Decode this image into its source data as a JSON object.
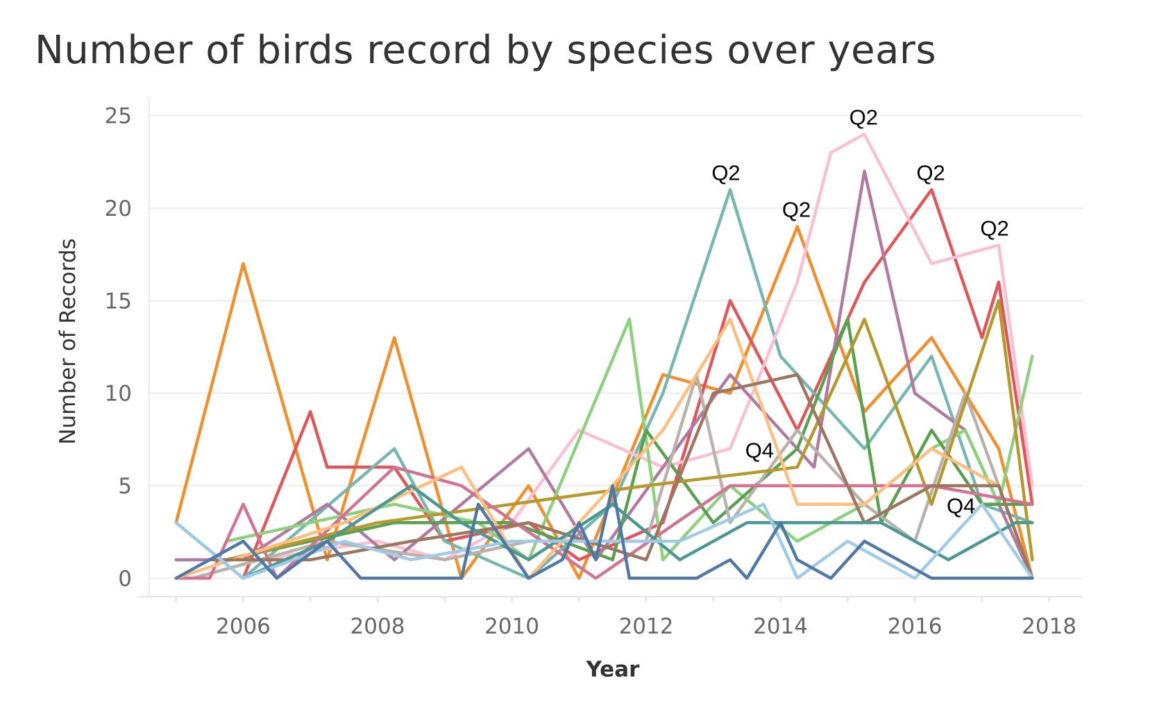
{
  "chart_data": {
    "type": "line",
    "title": "Number of birds record by species over years",
    "xlabel": "Year",
    "ylabel": "Number of Records",
    "xlim": [
      2004.6,
      2018.5
    ],
    "ylim": [
      -1,
      26
    ],
    "x_ticks": [
      2006,
      2008,
      2010,
      2012,
      2014,
      2016,
      2018
    ],
    "y_ticks": [
      0,
      5,
      10,
      15,
      20,
      25
    ],
    "grid": true,
    "legend": "none",
    "annotations": [
      {
        "text": "Q2",
        "x": 2013.25,
        "y": 21
      },
      {
        "text": "Q2",
        "x": 2014.3,
        "y": 19
      },
      {
        "text": "Q2",
        "x": 2015.3,
        "y": 24
      },
      {
        "text": "Q2",
        "x": 2016.3,
        "y": 21
      },
      {
        "text": "Q2",
        "x": 2017.25,
        "y": 18
      },
      {
        "text": "Q4",
        "x": 2013.75,
        "y": 6
      },
      {
        "text": "Q4",
        "x": 2016.75,
        "y": 3
      }
    ],
    "series": [
      {
        "color": "#f28e2b",
        "x": [
          2005.0,
          2006.0,
          2007.25,
          2008.25,
          2009.25,
          2010.25,
          2011.0,
          2012.25,
          2013.25,
          2014.25,
          2015.25,
          2016.25,
          2017.25,
          2017.75
        ],
        "values": [
          3,
          17,
          1,
          13,
          0,
          5,
          0,
          11,
          10,
          19,
          9,
          13,
          7,
          0
        ]
      },
      {
        "color": "#e15759",
        "x": [
          2006.0,
          2007.0,
          2007.25,
          2008.25,
          2009.0,
          2010.25,
          2011.0,
          2012.25,
          2013.25,
          2014.25,
          2015.25,
          2016.25,
          2017.0,
          2017.25,
          2017.75
        ],
        "values": [
          0,
          9,
          6,
          6,
          2,
          3,
          1,
          3,
          15,
          8,
          16,
          21,
          13,
          16,
          4
        ]
      },
      {
        "color": "#76b7b2",
        "x": [
          2005.0,
          2006.0,
          2008.25,
          2009.0,
          2010.25,
          2011.5,
          2012.25,
          2013.25,
          2014.0,
          2015.25,
          2016.25,
          2017.0,
          2017.75
        ],
        "values": [
          3,
          0,
          7,
          2,
          0,
          4,
          10,
          21,
          12,
          7,
          12,
          4,
          3
        ]
      },
      {
        "color": "#fabfd2",
        "x": [
          2005.25,
          2006.25,
          2008.0,
          2009.0,
          2010.0,
          2011.0,
          2012.25,
          2013.25,
          2014.25,
          2014.75,
          2015.25,
          2016.25,
          2017.25,
          2017.75
        ],
        "values": [
          0,
          1,
          2,
          1,
          3,
          8,
          6,
          7,
          16,
          23,
          24,
          17,
          18,
          5
        ]
      },
      {
        "color": "#b07aa1",
        "x": [
          2005.0,
          2006.0,
          2007.25,
          2008.25,
          2010.25,
          2011.25,
          2013.25,
          2014.5,
          2015.25,
          2016.0,
          2016.75,
          2017.75
        ],
        "values": [
          1,
          1,
          4,
          1,
          7,
          1,
          11,
          6,
          22,
          10,
          8,
          0
        ]
      },
      {
        "color": "#8cd17d",
        "x": [
          2005.75,
          2008.25,
          2009.5,
          2010.25,
          2011.75,
          2012.25,
          2013.25,
          2014.25,
          2015.25,
          2016.25,
          2016.75,
          2017.25,
          2017.75
        ],
        "values": [
          2,
          4,
          3,
          1,
          14,
          1,
          5,
          2,
          4,
          7,
          8,
          4,
          12
        ]
      },
      {
        "color": "#59a14f",
        "x": [
          2005.75,
          2008.25,
          2010.0,
          2011.5,
          2012.0,
          2013.0,
          2014.25,
          2015.0,
          2015.5,
          2016.25,
          2017.0,
          2017.75
        ],
        "values": [
          1,
          3,
          3,
          1,
          8,
          3,
          7,
          14,
          3,
          8,
          4,
          4
        ]
      },
      {
        "color": "#bab0ac",
        "x": [
          2005.25,
          2007.25,
          2009.0,
          2010.25,
          2012.0,
          2012.75,
          2013.25,
          2014.25,
          2015.25,
          2016.0,
          2016.75,
          2017.75
        ],
        "values": [
          0,
          2,
          1,
          2,
          2,
          11,
          3,
          8,
          4,
          2,
          10,
          0
        ]
      },
      {
        "color": "#b6992d",
        "x": [
          2005.75,
          2008.0,
          2010.0,
          2012.0,
          2014.25,
          2015.25,
          2016.25,
          2017.25,
          2017.75
        ],
        "values": [
          1,
          3,
          4,
          5,
          6,
          14,
          4,
          15,
          1
        ]
      },
      {
        "color": "#d37295",
        "x": [
          2005.0,
          2005.5,
          2006.0,
          2006.5,
          2008.25,
          2009.25,
          2011.25,
          2013.25,
          2014.25,
          2016.25,
          2017.75
        ],
        "values": [
          0,
          0,
          4,
          0,
          6,
          5,
          0,
          5,
          5,
          5,
          4
        ]
      },
      {
        "color": "#ffbe7d",
        "x": [
          2005.0,
          2007.5,
          2009.25,
          2010.25,
          2011.0,
          2012.25,
          2013.25,
          2014.25,
          2015.25,
          2016.25,
          2017.25,
          2017.75
        ],
        "values": [
          0,
          3,
          6,
          0,
          3,
          8,
          14,
          4,
          4,
          7,
          5,
          0
        ]
      },
      {
        "color": "#9d7660",
        "x": [
          2005.5,
          2007.0,
          2008.5,
          2010.25,
          2012.0,
          2013.0,
          2014.25,
          2015.25,
          2016.25,
          2017.25,
          2017.75
        ],
        "values": [
          1,
          1,
          2,
          3,
          1,
          10,
          11,
          3,
          5,
          5,
          0
        ]
      },
      {
        "color": "#499894",
        "x": [
          2005.0,
          2006.0,
          2007.25,
          2008.5,
          2009.25,
          2010.25,
          2011.5,
          2012.5,
          2013.5,
          2014.25,
          2015.5,
          2016.5,
          2017.5,
          2017.75
        ],
        "values": [
          3,
          0,
          2,
          5,
          3,
          1,
          4,
          1,
          3,
          3,
          3,
          1,
          3,
          3
        ]
      },
      {
        "color": "#a0cbe8",
        "x": [
          2005.0,
          2006.0,
          2007.5,
          2008.5,
          2010.0,
          2011.0,
          2012.5,
          2013.75,
          2014.25,
          2015.0,
          2016.0,
          2017.0,
          2017.75
        ],
        "values": [
          3,
          0,
          2,
          1,
          2,
          2,
          2,
          4,
          0,
          2,
          0,
          4,
          0
        ]
      },
      {
        "color": "#4e79a7",
        "x": [
          2005.0,
          2006.0,
          2006.5,
          2007.25,
          2007.75,
          2008.75,
          2009.25,
          2009.5,
          2010.25,
          2010.75,
          2011.0,
          2011.25,
          2011.5,
          2011.75,
          2012.25,
          2012.75,
          2013.25,
          2013.5,
          2014.0,
          2014.25,
          2014.75,
          2015.25,
          2015.75,
          2016.25,
          2016.75,
          2017.25,
          2017.75
        ],
        "values": [
          0,
          2,
          0,
          2,
          0,
          0,
          0,
          4,
          0,
          1,
          3,
          1,
          5,
          0,
          0,
          0,
          1,
          0,
          3,
          1,
          0,
          2,
          1,
          0,
          0,
          0,
          0
        ]
      }
    ]
  }
}
